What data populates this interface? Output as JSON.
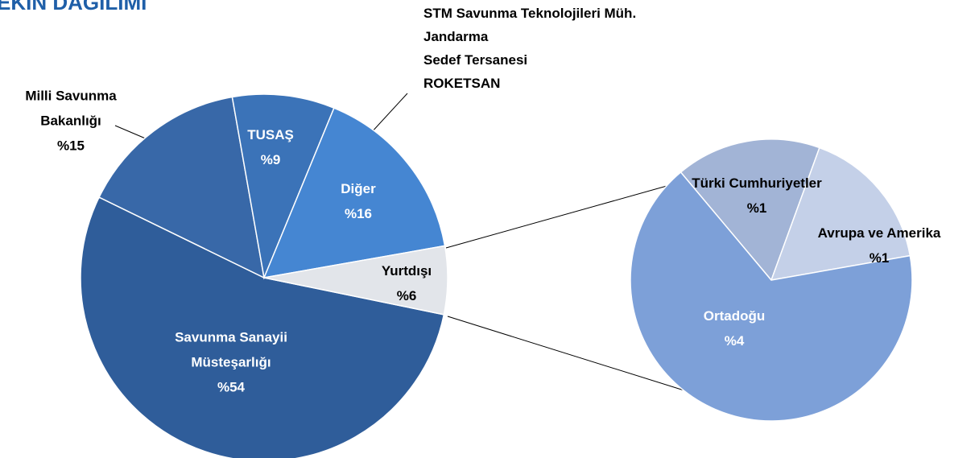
{
  "chart_data": [
    {
      "type": "pie",
      "title": "EKİN DAĞILIMI",
      "categories": [
        "Savunma Sanayii Müsteşarlığı",
        "Milli Savunma Bakanlığı",
        "TUSAŞ",
        "Diğer",
        "Yurtdışı"
      ],
      "values": [
        54,
        15,
        9,
        16,
        6
      ],
      "value_labels": [
        "%54",
        "%15",
        "%9",
        "%16",
        "%6"
      ],
      "colors": [
        "#2f5d9a",
        "#3868a8",
        "#3b73b8",
        "#4586d2",
        "#e2e5ea"
      ],
      "annotations": [
        "STM Savunma Teknolojileri  Müh.",
        "Jandarma",
        "Sedef Tersanesi",
        "ROKETSAN"
      ]
    },
    {
      "type": "pie",
      "categories": [
        "Türki Cumhuriyetler",
        "Avrupa ve Amerika",
        "Ortadoğu"
      ],
      "values": [
        1,
        1,
        4
      ],
      "value_labels": [
        "%1",
        "%1",
        "%4"
      ],
      "colors": [
        "#a2b4d6",
        "#c4d0e8",
        "#7da0d8"
      ]
    }
  ]
}
